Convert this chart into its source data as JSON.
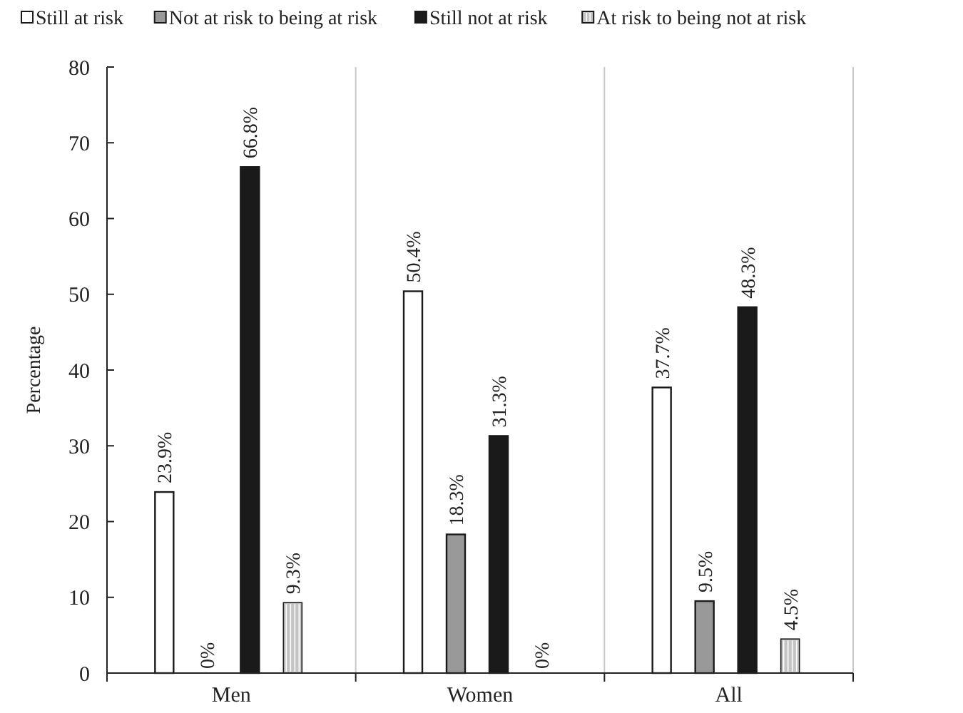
{
  "chart_data": {
    "type": "bar",
    "ylabel": "Percentage",
    "categories": [
      "Men",
      "Women",
      "All"
    ],
    "series": [
      {
        "name": "Still at risk",
        "color": "#ffffff",
        "values": [
          23.9,
          50.4,
          37.7
        ],
        "value_labels": [
          "23.9%",
          "50.4%",
          "37.7%"
        ]
      },
      {
        "name": "Not at risk to being at risk",
        "color": "#999999",
        "values": [
          0,
          18.3,
          9.5
        ],
        "value_labels": [
          "0%",
          "18.3%",
          "9.5%"
        ]
      },
      {
        "name": "Still not at risk",
        "color": "#1a1a1a",
        "values": [
          66.8,
          31.3,
          48.3
        ],
        "value_labels": [
          "66.8%",
          "31.3%",
          "48.3%"
        ]
      },
      {
        "name": "At risk to being not at risk",
        "color": "#c4c4c4",
        "values": [
          9.3,
          0,
          4.5
        ],
        "value_labels": [
          "9.3%",
          "0%",
          "4.5%"
        ]
      }
    ],
    "ylim": [
      0,
      80
    ],
    "yticks": [
      0,
      10,
      20,
      30,
      40,
      50,
      60,
      70,
      80
    ],
    "grid": "x",
    "legend": "top"
  }
}
